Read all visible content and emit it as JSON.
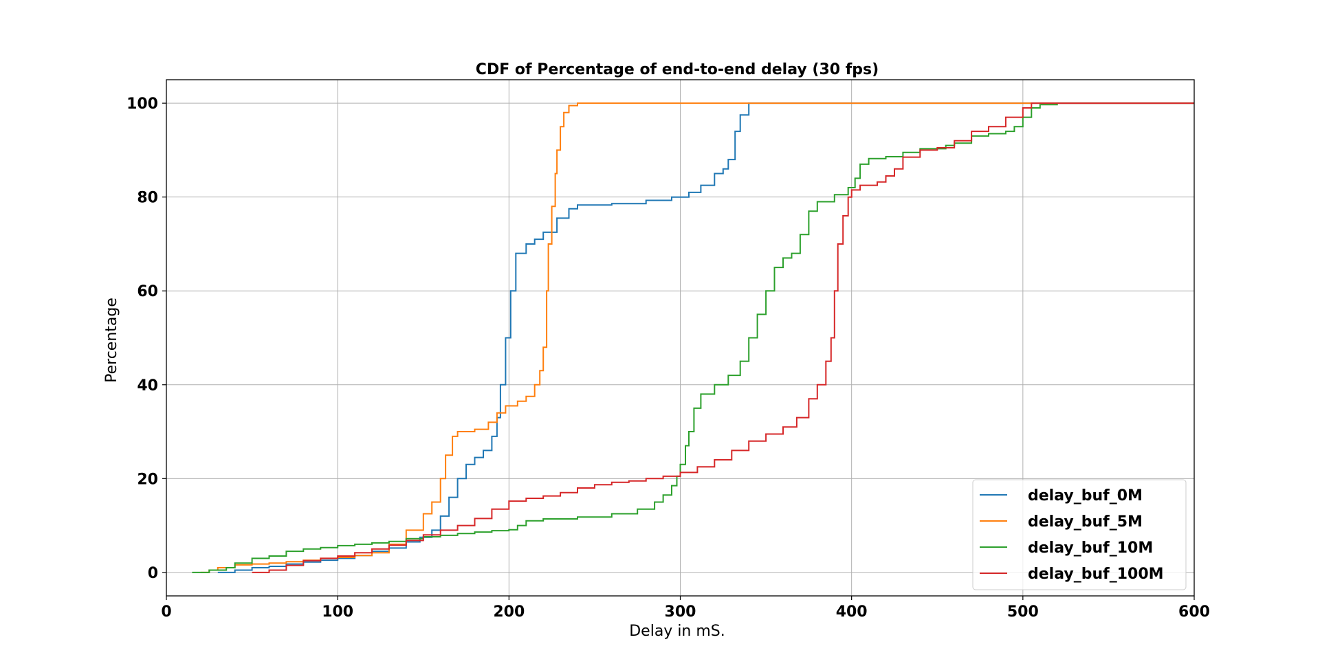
{
  "chart_data": {
    "type": "line",
    "title": "CDF of Percentage of end-to-end delay (30 fps)",
    "xlabel": "Delay in mS.",
    "ylabel": "Percentage",
    "xlim": [
      0,
      600
    ],
    "ylim": [
      -5,
      105
    ],
    "xticks": [
      0,
      100,
      200,
      300,
      400,
      500,
      600
    ],
    "xtick_labels": [
      "0",
      "100",
      "200",
      "300",
      "400",
      "500",
      "600"
    ],
    "yticks": [
      0,
      20,
      40,
      60,
      80,
      100
    ],
    "ytick_labels": [
      "0",
      "20",
      "40",
      "60",
      "80",
      "100"
    ],
    "grid": true,
    "step": true,
    "legend_position": "lower-right",
    "series": [
      {
        "name": "delay_buf_0M",
        "color": "#1f77b4",
        "points": [
          [
            30,
            0
          ],
          [
            40,
            0.5
          ],
          [
            50,
            1
          ],
          [
            60,
            1.3
          ],
          [
            70,
            1.8
          ],
          [
            80,
            2.2
          ],
          [
            90,
            2.6
          ],
          [
            100,
            3
          ],
          [
            110,
            3.6
          ],
          [
            120,
            4.5
          ],
          [
            130,
            5.2
          ],
          [
            140,
            6.5
          ],
          [
            148,
            7.5
          ],
          [
            155,
            9
          ],
          [
            160,
            12
          ],
          [
            165,
            16
          ],
          [
            170,
            20
          ],
          [
            175,
            23
          ],
          [
            180,
            24.5
          ],
          [
            185,
            26
          ],
          [
            190,
            29
          ],
          [
            193,
            33
          ],
          [
            195,
            40
          ],
          [
            198,
            50
          ],
          [
            201,
            60
          ],
          [
            204,
            68
          ],
          [
            210,
            70
          ],
          [
            215,
            71
          ],
          [
            220,
            72.5
          ],
          [
            228,
            75.5
          ],
          [
            235,
            77.5
          ],
          [
            240,
            78.3
          ],
          [
            260,
            78.6
          ],
          [
            280,
            79.3
          ],
          [
            295,
            80
          ],
          [
            305,
            81
          ],
          [
            312,
            82.5
          ],
          [
            320,
            85
          ],
          [
            325,
            86
          ],
          [
            328,
            88
          ],
          [
            332,
            94
          ],
          [
            335,
            97.5
          ],
          [
            340,
            100
          ],
          [
            600,
            100
          ]
        ]
      },
      {
        "name": "delay_buf_5M",
        "color": "#ff7f0e",
        "points": [
          [
            20,
            0
          ],
          [
            25,
            0.5
          ],
          [
            30,
            1
          ],
          [
            40,
            1.6
          ],
          [
            50,
            1.8
          ],
          [
            60,
            2
          ],
          [
            70,
            2.3
          ],
          [
            80,
            2.6
          ],
          [
            90,
            3
          ],
          [
            100,
            3.2
          ],
          [
            110,
            3.6
          ],
          [
            120,
            4.2
          ],
          [
            130,
            6
          ],
          [
            140,
            9
          ],
          [
            150,
            12.5
          ],
          [
            155,
            15
          ],
          [
            160,
            20
          ],
          [
            163,
            25
          ],
          [
            167,
            29
          ],
          [
            170,
            30
          ],
          [
            180,
            30.5
          ],
          [
            188,
            32
          ],
          [
            193,
            34
          ],
          [
            198,
            35.5
          ],
          [
            205,
            36.5
          ],
          [
            210,
            37.5
          ],
          [
            215,
            40
          ],
          [
            218,
            43
          ],
          [
            220,
            48
          ],
          [
            222,
            60
          ],
          [
            223,
            70
          ],
          [
            225,
            78
          ],
          [
            227,
            85
          ],
          [
            228,
            90
          ],
          [
            230,
            95
          ],
          [
            232,
            98
          ],
          [
            235,
            99.5
          ],
          [
            240,
            100
          ],
          [
            600,
            100
          ]
        ]
      },
      {
        "name": "delay_buf_10M",
        "color": "#2ca02c",
        "points": [
          [
            15,
            0
          ],
          [
            25,
            0.5
          ],
          [
            35,
            1
          ],
          [
            40,
            2
          ],
          [
            50,
            3
          ],
          [
            60,
            3.5
          ],
          [
            70,
            4.5
          ],
          [
            80,
            5
          ],
          [
            90,
            5.3
          ],
          [
            100,
            5.7
          ],
          [
            110,
            6
          ],
          [
            120,
            6.3
          ],
          [
            130,
            6.6
          ],
          [
            140,
            7.2
          ],
          [
            150,
            7.6
          ],
          [
            160,
            7.9
          ],
          [
            170,
            8.3
          ],
          [
            180,
            8.6
          ],
          [
            190,
            8.9
          ],
          [
            200,
            9.1
          ],
          [
            205,
            10
          ],
          [
            210,
            11
          ],
          [
            220,
            11.4
          ],
          [
            240,
            11.8
          ],
          [
            260,
            12.5
          ],
          [
            275,
            13.5
          ],
          [
            285,
            15
          ],
          [
            290,
            16.5
          ],
          [
            295,
            18.5
          ],
          [
            298,
            20.5
          ],
          [
            300,
            23
          ],
          [
            303,
            27
          ],
          [
            305,
            30
          ],
          [
            308,
            35
          ],
          [
            312,
            38
          ],
          [
            320,
            40
          ],
          [
            328,
            42
          ],
          [
            335,
            45
          ],
          [
            340,
            50
          ],
          [
            345,
            55
          ],
          [
            350,
            60
          ],
          [
            355,
            65
          ],
          [
            360,
            67
          ],
          [
            365,
            68
          ],
          [
            370,
            72
          ],
          [
            375,
            77
          ],
          [
            380,
            79
          ],
          [
            390,
            80.5
          ],
          [
            398,
            82
          ],
          [
            402,
            84
          ],
          [
            405,
            87
          ],
          [
            410,
            88.2
          ],
          [
            420,
            88.6
          ],
          [
            430,
            89.5
          ],
          [
            440,
            90.3
          ],
          [
            455,
            91
          ],
          [
            460,
            91.5
          ],
          [
            470,
            93
          ],
          [
            480,
            93.5
          ],
          [
            490,
            94
          ],
          [
            495,
            95
          ],
          [
            500,
            97
          ],
          [
            505,
            99
          ],
          [
            510,
            99.7
          ],
          [
            520,
            100
          ],
          [
            600,
            100
          ]
        ]
      },
      {
        "name": "delay_buf_100M",
        "color": "#d62728",
        "points": [
          [
            50,
            0
          ],
          [
            60,
            0.5
          ],
          [
            70,
            1.5
          ],
          [
            80,
            2.5
          ],
          [
            90,
            3
          ],
          [
            100,
            3.5
          ],
          [
            110,
            4.2
          ],
          [
            120,
            5
          ],
          [
            130,
            5.8
          ],
          [
            140,
            6.8
          ],
          [
            150,
            8
          ],
          [
            160,
            9
          ],
          [
            170,
            10
          ],
          [
            180,
            11.5
          ],
          [
            190,
            13.5
          ],
          [
            200,
            15.2
          ],
          [
            210,
            15.8
          ],
          [
            220,
            16.3
          ],
          [
            230,
            17
          ],
          [
            240,
            18
          ],
          [
            250,
            18.7
          ],
          [
            260,
            19.2
          ],
          [
            270,
            19.5
          ],
          [
            280,
            20
          ],
          [
            290,
            20.5
          ],
          [
            300,
            21.3
          ],
          [
            310,
            22.5
          ],
          [
            320,
            24
          ],
          [
            330,
            26
          ],
          [
            340,
            28
          ],
          [
            350,
            29.5
          ],
          [
            360,
            31
          ],
          [
            368,
            33
          ],
          [
            375,
            37
          ],
          [
            380,
            40
          ],
          [
            385,
            45
          ],
          [
            388,
            50
          ],
          [
            390,
            60
          ],
          [
            392,
            70
          ],
          [
            395,
            76
          ],
          [
            398,
            80
          ],
          [
            400,
            81.5
          ],
          [
            405,
            82.5
          ],
          [
            415,
            83.2
          ],
          [
            420,
            84.5
          ],
          [
            425,
            86
          ],
          [
            430,
            88.5
          ],
          [
            440,
            90
          ],
          [
            450,
            90.5
          ],
          [
            460,
            92
          ],
          [
            470,
            94
          ],
          [
            480,
            95
          ],
          [
            490,
            97
          ],
          [
            500,
            99
          ],
          [
            505,
            100
          ],
          [
            600,
            100
          ]
        ]
      }
    ]
  }
}
